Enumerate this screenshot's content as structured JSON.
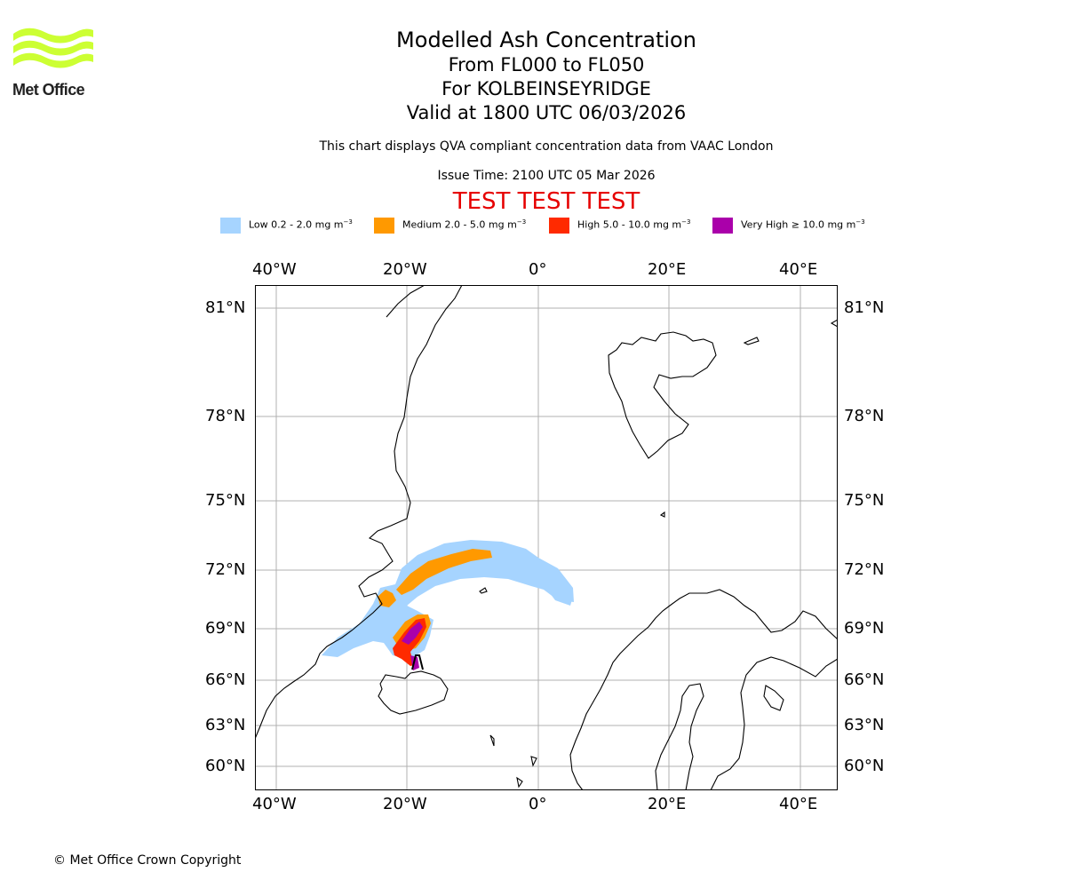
{
  "org": {
    "name": "Met Office",
    "logo_color": "#ccff33"
  },
  "titles": {
    "title": "Modelled Ash Concentration",
    "levels": "From FL000 to FL050",
    "location": "For KOLBEINSEYRIDGE",
    "valid": "Valid at 1800 UTC 06/03/2026"
  },
  "description": "This chart displays QVA compliant concentration data from VAAC London",
  "issue_time": "Issue Time: 2100 UTC 05 Mar 2026",
  "test_banner": "TEST TEST TEST",
  "legend": [
    {
      "label": "Low 0.2 - 2.0 mg m",
      "sup": "−3",
      "color": "#a6d4ff"
    },
    {
      "label": "Medium 2.0 - 5.0 mg m",
      "sup": "−3",
      "color": "#ff9900"
    },
    {
      "label": "High 5.0 - 10.0 mg m",
      "sup": "−3",
      "color": "#ff2a00"
    },
    {
      "label": "Very High ≥ 10.0 mg m",
      "sup": "−3",
      "color": "#aa00aa"
    }
  ],
  "axes": {
    "longitude_labels": [
      "40°W",
      "20°W",
      "0°",
      "20°E",
      "40°E"
    ],
    "latitude_labels": [
      "81°N",
      "78°N",
      "75°N",
      "72°N",
      "69°N",
      "66°N",
      "63°N",
      "60°N"
    ]
  },
  "ash_zones": [
    {
      "level": "Low",
      "color": "#a6d4ff"
    },
    {
      "level": "Medium",
      "color": "#ff9900"
    },
    {
      "level": "High",
      "color": "#ff2a00"
    },
    {
      "level": "Very High",
      "color": "#aa00aa"
    }
  ],
  "copyright": "© Met Office Crown Copyright"
}
